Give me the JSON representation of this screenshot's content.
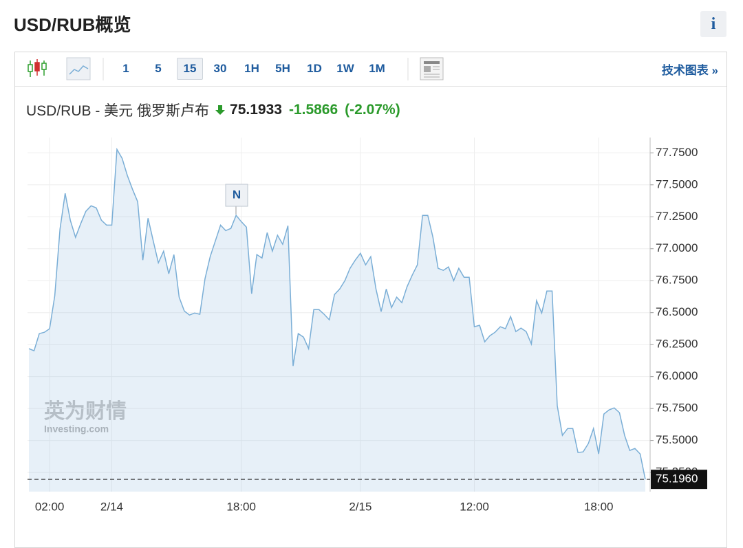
{
  "header": {
    "title": "USD/RUB概览",
    "info": "i"
  },
  "toolbar": {
    "intervals": [
      "1",
      "5",
      "15",
      "30",
      "1H",
      "5H",
      "1D",
      "1W",
      "1M"
    ],
    "technical_link": "技术图表 »"
  },
  "quote": {
    "name": "USD/RUB - 美元 俄罗斯卢布",
    "price": "75.1933",
    "change": "-1.5866",
    "change_percent": "(-2.07%)"
  },
  "chart_data": {
    "type": "area",
    "categories": [
      null,
      null,
      null,
      null,
      "02:00",
      null,
      null,
      null,
      null,
      null,
      null,
      null,
      null,
      null,
      null,
      null,
      "2/14",
      null,
      null,
      null,
      null,
      null,
      null,
      null,
      null,
      null,
      null,
      null,
      null,
      null,
      null,
      null,
      null,
      null,
      null,
      null,
      null,
      null,
      null,
      null,
      null,
      "18:00",
      null,
      null,
      null,
      null,
      null,
      null,
      null,
      null,
      null,
      null,
      null,
      null,
      null,
      null,
      null,
      null,
      null,
      null,
      null,
      null,
      null,
      null,
      "2/15",
      null,
      null,
      null,
      null,
      null,
      null,
      null,
      null,
      null,
      null,
      null,
      null,
      null,
      null,
      null,
      null,
      null,
      null,
      null,
      null,
      null,
      "12:00",
      null,
      null,
      null,
      null,
      null,
      null,
      null,
      null,
      null,
      null,
      null,
      null,
      null,
      null,
      null,
      null,
      null,
      null,
      null,
      null,
      null,
      null,
      null,
      "18:00",
      null,
      null,
      null,
      null,
      null,
      null,
      null,
      null,
      null
    ],
    "series": [
      {
        "color": "#7aaed6",
        "values": [
          76.218,
          76.202,
          76.336,
          76.347,
          76.374,
          76.632,
          77.153,
          77.433,
          77.223,
          77.089,
          77.196,
          77.293,
          77.336,
          77.32,
          77.223,
          77.185,
          77.185,
          77.777,
          77.707,
          77.573,
          77.465,
          77.368,
          76.911,
          77.239,
          77.062,
          76.89,
          76.981,
          76.804,
          76.954,
          76.621,
          76.513,
          76.481,
          76.497,
          76.487,
          76.766,
          76.938,
          77.062,
          77.185,
          77.142,
          77.159,
          77.261,
          77.212,
          77.169,
          76.648,
          76.954,
          76.927,
          77.126,
          76.981,
          77.105,
          77.035,
          77.18,
          76.083,
          76.336,
          76.309,
          76.218,
          76.524,
          76.524,
          76.487,
          76.444,
          76.642,
          76.685,
          76.75,
          76.847,
          76.911,
          76.965,
          76.874,
          76.938,
          76.685,
          76.508,
          76.685,
          76.54,
          76.621,
          76.578,
          76.702,
          76.793,
          76.874,
          77.261,
          77.261,
          77.089,
          76.847,
          76.831,
          76.858,
          76.75,
          76.847,
          76.777,
          76.777,
          76.39,
          76.401,
          76.272,
          76.32,
          76.347,
          76.39,
          76.374,
          76.47,
          76.352,
          76.379,
          76.352,
          76.255,
          76.594,
          76.497,
          76.669,
          76.669,
          75.772,
          75.54,
          75.594,
          75.594,
          75.406,
          75.411,
          75.476,
          75.594,
          75.395,
          75.707,
          75.739,
          75.755,
          75.718,
          75.54,
          75.422,
          75.438,
          75.395,
          75.196
        ]
      }
    ],
    "ylim": [
      75.1,
      77.87
    ],
    "yticks": [
      {
        "value": 75.25,
        "label": "75.2500"
      },
      {
        "value": 75.5,
        "label": "75.5000"
      },
      {
        "value": 75.75,
        "label": "75.7500"
      },
      {
        "value": 76,
        "label": "76.0000"
      },
      {
        "value": 76.25,
        "label": "76.2500"
      },
      {
        "value": 76.5,
        "label": "76.5000"
      },
      {
        "value": 76.75,
        "label": "76.7500"
      },
      {
        "value": 77,
        "label": "77.0000"
      },
      {
        "value": 77.25,
        "label": "77.2500"
      },
      {
        "value": 77.5,
        "label": "77.5000"
      },
      {
        "value": 77.75,
        "label": "77.7500"
      }
    ],
    "last_price": {
      "value": 75.196,
      "label": "75.1960"
    },
    "news_marker": "N",
    "watermark": [
      "英为财情",
      "Investing.com"
    ],
    "grid": true
  }
}
